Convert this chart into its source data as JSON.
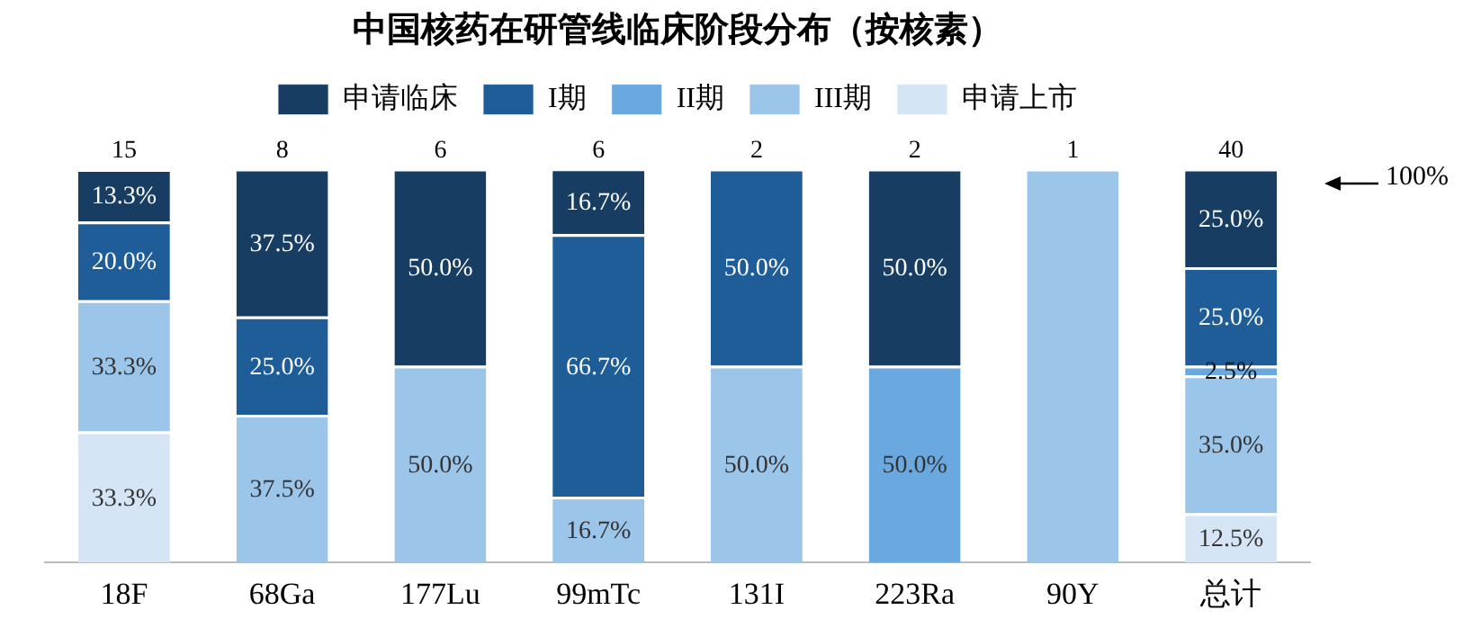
{
  "chart_data": {
    "type": "bar",
    "title": "中国核药在研管线临床阶段分布（按核素）",
    "stacked": true,
    "legend": "top",
    "grid": false,
    "tick_labels": "x",
    "ylim": [
      0,
      100
    ],
    "categories": [
      "18F",
      "68Ga",
      "177Lu",
      "99mTc",
      "131I",
      "223Ra",
      "90Y",
      "总计"
    ],
    "series": [
      {
        "name": "申请上市",
        "color": "#d5e5f5",
        "values": [
          33.3,
          0,
          0,
          0,
          0,
          0,
          0,
          12.5
        ],
        "value_labels": [
          "33.3%",
          null,
          null,
          null,
          null,
          null,
          null,
          "12.5%"
        ]
      },
      {
        "name": "III期",
        "color": "#9cc5ea",
        "values": [
          33.3,
          37.5,
          50.0,
          16.7,
          50.0,
          0,
          100,
          35.0
        ],
        "value_labels": [
          "33.3%",
          "37.5%",
          "50.0%",
          "16.7%",
          "50.0%",
          null,
          null,
          "35.0%"
        ]
      },
      {
        "name": "II期",
        "color": "#6aa8e0",
        "values": [
          0,
          0,
          0,
          0,
          0,
          50.0,
          0,
          2.5
        ],
        "value_labels": [
          null,
          null,
          null,
          null,
          null,
          "50.0%",
          null,
          "2.5%"
        ]
      },
      {
        "name": "I期",
        "color": "#1f5d98",
        "values": [
          20.0,
          25.0,
          0,
          66.7,
          50.0,
          0,
          0,
          25.0
        ],
        "value_labels": [
          "20.0%",
          "25.0%",
          null,
          "66.7%",
          "50.0%",
          null,
          null,
          "25.0%"
        ]
      },
      {
        "name": "申请临床",
        "color": "#173d62",
        "values": [
          13.3,
          37.5,
          50.0,
          16.7,
          0,
          50.0,
          0,
          25.0
        ],
        "value_labels": [
          "13.3%",
          "37.5%",
          "50.0%",
          "16.7%",
          null,
          "50.0%",
          null,
          "25.0%"
        ]
      }
    ],
    "annotations": [
      {
        "text": "15",
        "x": "18F",
        "y": 100
      },
      {
        "text": "8",
        "x": "68Ga",
        "y": 100
      },
      {
        "text": "6",
        "x": "177Lu",
        "y": 100
      },
      {
        "text": "6",
        "x": "99mTc",
        "y": 100
      },
      {
        "text": "2",
        "x": "131I",
        "y": 100
      },
      {
        "text": "2",
        "x": "223Ra",
        "y": 100
      },
      {
        "text": "1",
        "x": "90Y",
        "y": 100
      },
      {
        "text": "40",
        "x": "总计",
        "y": 100
      },
      "100%"
    ]
  }
}
